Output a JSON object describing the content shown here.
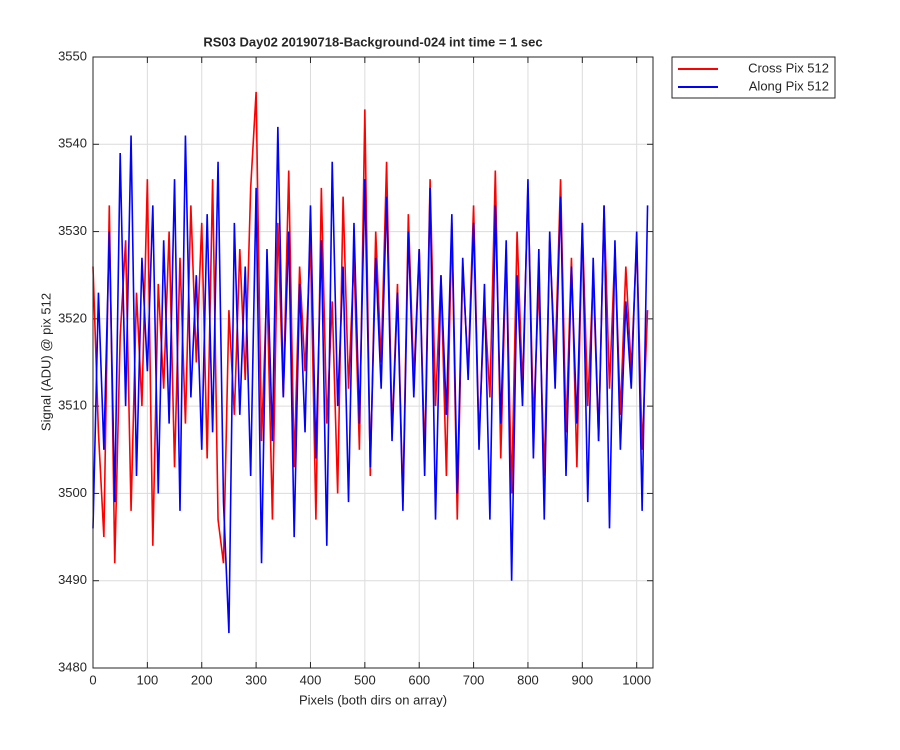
{
  "chart_data": {
    "type": "line",
    "title": "RS03 Day02 20190718-Background-024 int time = 1 sec",
    "xlabel": "Pixels (both dirs on array)",
    "ylabel": "Signal (ADU) @ pix 512",
    "x": [
      0,
      10,
      20,
      30,
      40,
      50,
      60,
      70,
      80,
      90,
      100,
      110,
      120,
      130,
      140,
      150,
      160,
      170,
      180,
      190,
      200,
      210,
      220,
      230,
      240,
      250,
      260,
      270,
      280,
      290,
      300,
      310,
      320,
      330,
      340,
      350,
      360,
      370,
      380,
      390,
      400,
      410,
      420,
      430,
      440,
      450,
      460,
      470,
      480,
      490,
      500,
      510,
      520,
      530,
      540,
      550,
      560,
      570,
      580,
      590,
      600,
      610,
      620,
      630,
      640,
      650,
      660,
      670,
      680,
      690,
      700,
      710,
      720,
      730,
      740,
      750,
      760,
      770,
      780,
      790,
      800,
      810,
      820,
      830,
      840,
      850,
      860,
      870,
      880,
      890,
      900,
      910,
      920,
      930,
      940,
      950,
      960,
      970,
      980,
      990,
      1000,
      1010,
      1020
    ],
    "series": [
      {
        "name": "Cross Pix 512",
        "color": "#ff0000",
        "values": [
          3526,
          3507,
          3495,
          3533,
          3492,
          3518,
          3529,
          3498,
          3523,
          3510,
          3536,
          3494,
          3524,
          3512,
          3530,
          3503,
          3527,
          3508,
          3533,
          3515,
          3531,
          3504,
          3536,
          3497,
          3492,
          3521,
          3509,
          3528,
          3513,
          3535,
          3546,
          3506,
          3524,
          3497,
          3531,
          3511,
          3537,
          3503,
          3526,
          3514,
          3529,
          3497,
          3535,
          3508,
          3522,
          3500,
          3534,
          3512,
          3527,
          3505,
          3544,
          3502,
          3530,
          3515,
          3538,
          3507,
          3524,
          3499,
          3532,
          3513,
          3528,
          3504,
          3536,
          3510,
          3525,
          3502,
          3531,
          3497,
          3526,
          3514,
          3533,
          3506,
          3522,
          3511,
          3537,
          3504,
          3528,
          3500,
          3530,
          3512,
          3535,
          3508,
          3524,
          3502,
          3529,
          3515,
          3536,
          3507,
          3527,
          3503,
          3531,
          3510,
          3525,
          3506,
          3533,
          3512,
          3528,
          3509,
          3526,
          3514,
          3529,
          3505,
          3521
        ]
      },
      {
        "name": "Along Pix 512",
        "color": "#0000ff",
        "values": [
          3496,
          3523,
          3505,
          3530,
          3499,
          3539,
          3510,
          3541,
          3502,
          3527,
          3514,
          3533,
          3500,
          3529,
          3508,
          3536,
          3498,
          3541,
          3511,
          3525,
          3505,
          3532,
          3507,
          3538,
          3499,
          3484,
          3531,
          3509,
          3526,
          3502,
          3535,
          3492,
          3528,
          3506,
          3542,
          3511,
          3530,
          3495,
          3524,
          3507,
          3533,
          3504,
          3529,
          3494,
          3538,
          3510,
          3526,
          3499,
          3531,
          3508,
          3536,
          3503,
          3527,
          3512,
          3534,
          3506,
          3523,
          3498,
          3530,
          3511,
          3528,
          3502,
          3535,
          3497,
          3525,
          3509,
          3532,
          3500,
          3527,
          3513,
          3531,
          3505,
          3524,
          3497,
          3533,
          3508,
          3529,
          3490,
          3525,
          3510,
          3536,
          3504,
          3528,
          3497,
          3530,
          3512,
          3534,
          3502,
          3526,
          3508,
          3531,
          3499,
          3527,
          3506,
          3533,
          3496,
          3529,
          3505,
          3522,
          3512,
          3530,
          3498,
          3533
        ]
      }
    ],
    "xlim": [
      0,
      1030
    ],
    "xticks": [
      0,
      100,
      200,
      300,
      400,
      500,
      600,
      700,
      800,
      900,
      1000
    ],
    "ylim": [
      3480,
      3550
    ],
    "yticks": [
      3480,
      3490,
      3500,
      3510,
      3520,
      3530,
      3540,
      3550
    ],
    "grid": true,
    "legend": "outside-top-right"
  }
}
